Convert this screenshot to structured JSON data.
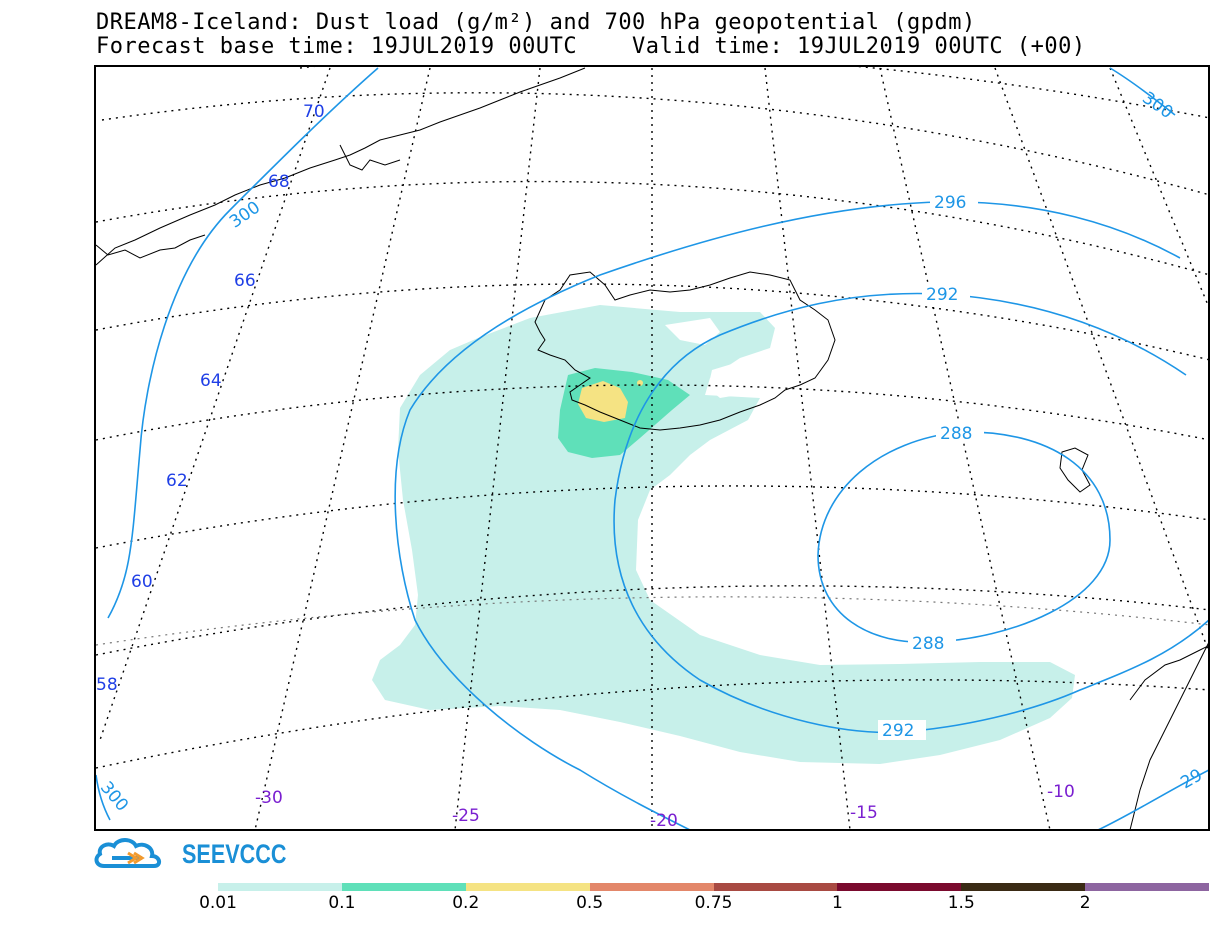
{
  "title": {
    "line1": "DREAM8-Iceland: Dust load (g/m²) and 700 hPa geopotential (gpdm)",
    "line2": "Forecast base time: 19JUL2019 00UTC    Valid time: 19JUL2019 00UTC (+00)"
  },
  "map": {
    "latitude_labels": [
      "70",
      "68",
      "66",
      "64",
      "62",
      "60",
      "58"
    ],
    "longitude_labels": [
      "-30",
      "-25",
      "-20",
      "-15",
      "-10"
    ],
    "contour_labels": [
      "300",
      "300",
      "296",
      "292",
      "288",
      "288",
      "292",
      "300",
      "29"
    ],
    "colors": {
      "contour": "#1e96e6",
      "lat_label": "#1f3fe6",
      "lon_label": "#7a1fd0",
      "dust_001": "#c7f0ea",
      "dust_01": "#5fe0b9",
      "dust_02": "#f5e383"
    }
  },
  "logo": {
    "text": "SEEVCCC",
    "icon": "cloud-logo-icon"
  },
  "colorbar": {
    "labels": [
      "0.01",
      "0.1",
      "0.2",
      "0.5",
      "0.75",
      "1",
      "1.5",
      "2"
    ],
    "colors": [
      "#c7f0ea",
      "#5fe0b9",
      "#f5e383",
      "#e3876a",
      "#a84a42",
      "#7a0a2e",
      "#3a2a14",
      "#8d65a0"
    ]
  }
}
